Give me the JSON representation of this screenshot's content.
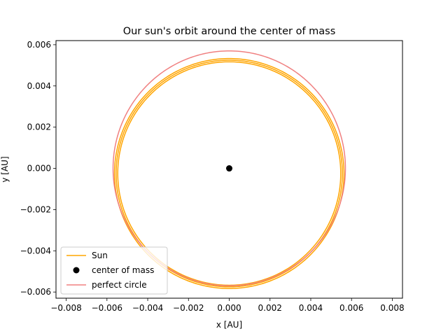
{
  "chart_data": {
    "type": "line",
    "title": "Our sun's orbit around the center of mass",
    "xlabel": "x [AU]",
    "ylabel": "y [AU]",
    "xlim": [
      -0.0085,
      0.0085
    ],
    "ylim": [
      -0.0063,
      0.0062
    ],
    "xticks": [
      -0.008,
      -0.006,
      -0.004,
      -0.002,
      0.0,
      0.002,
      0.004,
      0.006,
      0.008
    ],
    "xtick_labels": [
      "−0.008",
      "−0.006",
      "−0.004",
      "−0.002",
      "0.000",
      "0.002",
      "0.004",
      "0.006",
      "0.008"
    ],
    "yticks": [
      -0.006,
      -0.004,
      -0.002,
      0.0,
      0.002,
      0.004,
      0.006
    ],
    "ytick_labels": [
      "−0.006",
      "−0.004",
      "−0.002",
      "0.000",
      "0.002",
      "0.004",
      "0.006"
    ],
    "grid": false,
    "legend_position": "lower-left",
    "series": [
      {
        "name": "Sun",
        "kind": "line",
        "color": "#ffa500",
        "shape": "ellipse",
        "center": [
          0.0,
          -0.00025
        ],
        "radius_x": 0.00555,
        "radius_y": 0.0055,
        "loops": 3,
        "loop_spread": 8e-05
      },
      {
        "name": "center of mass",
        "kind": "point",
        "color": "#000000",
        "x": 0.0,
        "y": 0.0
      },
      {
        "name": "perfect circle",
        "kind": "line",
        "color": "#f08080",
        "shape": "ellipse",
        "center": [
          0.0,
          0.0
        ],
        "radius_x": 0.0057,
        "radius_y": 0.0057,
        "loops": 1,
        "loop_spread": 0
      }
    ]
  }
}
